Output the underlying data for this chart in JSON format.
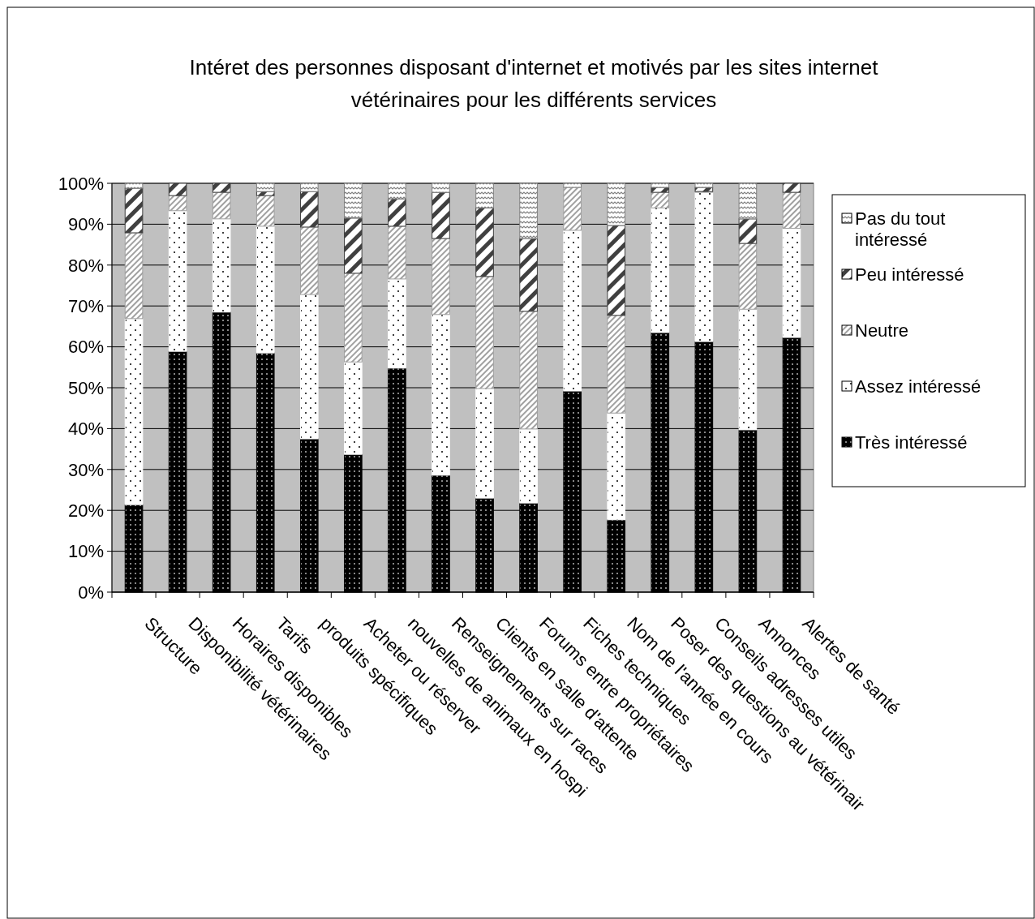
{
  "chart_data": {
    "type": "bar",
    "stacked": true,
    "title": "Intéret des personnes disposant d'internet et motivés par les sites internet vétérinaires pour les différents services",
    "categories": [
      "Structure",
      "Disponibilité vétérinaires",
      "Horaires disponibles",
      "Tarifs",
      "produits spécifiques",
      "Acheter ou réserver",
      "nouvelles de animaux en hospi",
      "Renseignements sur races",
      "Clients en salle d'attente",
      "Forums entre propriétaires",
      "Fiches techniques",
      "Nom de l'année en cours",
      "Poser des questions au vétérinair",
      "Conseils adresses utiles",
      "Annonces",
      "Alertes de santé"
    ],
    "series": [
      {
        "name": "Très intéressé",
        "color": "#000000",
        "values": [
          21.4,
          58.9,
          68.5,
          58.5,
          37.5,
          33.7,
          54.8,
          28.6,
          23,
          21.8,
          49.2,
          17.7,
          63.5,
          61.3,
          39.7,
          62.3
        ]
      },
      {
        "name": "Assez intéressé",
        "color": "#ffffff",
        "values": [
          45.5,
          34.4,
          22.8,
          31,
          35.3,
          22.6,
          21.8,
          39.3,
          26.8,
          18.1,
          39.3,
          26.1,
          30.5,
          36.5,
          29.5,
          26.7
        ]
      },
      {
        "name": "Neutre",
        "color": "#a0a0a0",
        "values": [
          21,
          3.7,
          6.5,
          7.5,
          16.5,
          21.7,
          12.9,
          18.6,
          27.4,
          28.8,
          10.5,
          23.9,
          3.8,
          0.2,
          16.1,
          8.8
        ]
      },
      {
        "name": "Peu intéressé",
        "color": "#404040",
        "values": [
          10.9,
          3,
          2.2,
          1,
          8.7,
          13.5,
          6.7,
          11.3,
          16.8,
          17.8,
          0,
          22,
          1.2,
          1,
          6,
          2.2
        ]
      },
      {
        "name": "Pas du tout intéressé",
        "color": "#808080",
        "values": [
          1.2,
          0,
          0,
          2,
          2,
          8.5,
          3.8,
          2.2,
          6,
          13.5,
          1,
          10.3,
          1,
          1,
          8.7,
          0
        ]
      }
    ],
    "ylim": [
      0,
      100
    ],
    "yticks": [
      {
        "value": 0,
        "label": "0%"
      },
      {
        "value": 10,
        "label": "10%"
      },
      {
        "value": 20,
        "label": "20%"
      },
      {
        "value": 30,
        "label": "30%"
      },
      {
        "value": 40,
        "label": "40%"
      },
      {
        "value": 50,
        "label": "50%"
      },
      {
        "value": 60,
        "label": "60%"
      },
      {
        "value": 70,
        "label": "70%"
      },
      {
        "value": 80,
        "label": "80%"
      },
      {
        "value": 90,
        "label": "90%"
      },
      {
        "value": 100,
        "label": "100%"
      }
    ],
    "grid": "y",
    "legend": "right"
  }
}
